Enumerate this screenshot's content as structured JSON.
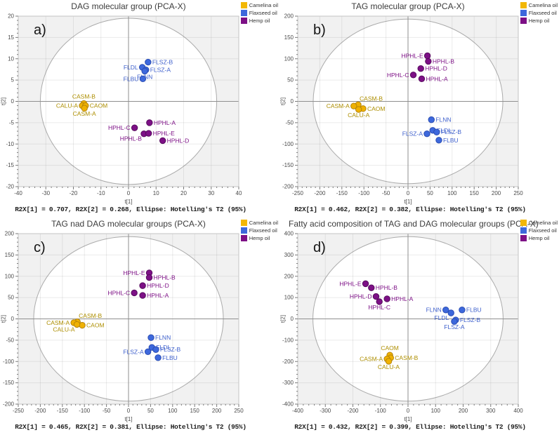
{
  "figure": {
    "background": "#ffffff"
  },
  "legend": {
    "items": [
      {
        "label": "Camelina oil",
        "color": "#F2B705"
      },
      {
        "label": "Flaxseed oil",
        "color": "#3D68DC"
      },
      {
        "label": "Hemp oil",
        "color": "#7D1086"
      }
    ]
  },
  "series_colors": {
    "Camelina oil": {
      "fill": "#EFB102",
      "stroke": "#B5850C",
      "text": "#AD8E00"
    },
    "Flaxseed oil": {
      "fill": "#3D68DC",
      "stroke": "#2B4DB3",
      "text": "#3D5FCC"
    },
    "Hemp oil": {
      "fill": "#7D1086",
      "stroke": "#570B5E",
      "text": "#7D1086"
    }
  },
  "chart_data": [
    {
      "type": "scatter",
      "panel_label": "a)",
      "title": "DAG molecular group (PCA-X)",
      "xlabel": "t[1]",
      "ylabel": "t[2]",
      "caption": "R2X[1] = 0.707, R2X[2] = 0.268, Ellipse: Hotelling's T2 (95%)",
      "xlim": [
        -40,
        40
      ],
      "ylim": [
        -20,
        20
      ],
      "xtick_step": 10,
      "ytick_step": 5,
      "ellipse": {
        "rx": 32,
        "ry": 19.5
      },
      "points": [
        {
          "label": "CASM-B",
          "series": "Camelina oil",
          "x": -16.2,
          "y": -0.5,
          "anchor": "above"
        },
        {
          "label": "CALU-A",
          "series": "Camelina oil",
          "x": -16.8,
          "y": -1.0,
          "anchor": "left"
        },
        {
          "label": "CAOM",
          "series": "Camelina oil",
          "x": -15.6,
          "y": -1.0,
          "anchor": "right"
        },
        {
          "label": "CASM-A",
          "series": "Camelina oil",
          "x": -16.0,
          "y": -1.6,
          "anchor": "below"
        },
        {
          "label": "FLSZ-B",
          "series": "Flaxseed oil",
          "x": 7.1,
          "y": 9.2,
          "anchor": "right"
        },
        {
          "label": "FLDL",
          "series": "Flaxseed oil",
          "x": 5.0,
          "y": 8.0,
          "anchor": "left"
        },
        {
          "label": "FLSZ-A",
          "series": "Flaxseed oil",
          "x": 6.3,
          "y": 7.4,
          "anchor": "right"
        },
        {
          "label": "FLNN",
          "series": "Flaxseed oil",
          "x": 5.9,
          "y": 7.1,
          "anchor": "below"
        },
        {
          "label": "FLBU",
          "series": "Flaxseed oil",
          "x": 5.2,
          "y": 5.3,
          "anchor": "left"
        },
        {
          "label": "HPHL-A",
          "series": "Hemp oil",
          "x": 7.6,
          "y": -5.0,
          "anchor": "right"
        },
        {
          "label": "HPHL-C",
          "series": "Hemp oil",
          "x": 2.2,
          "y": -6.2,
          "anchor": "left"
        },
        {
          "label": "HPHL-B",
          "series": "Hemp oil",
          "x": 5.6,
          "y": -7.6,
          "anchor": "below-left"
        },
        {
          "label": "HPHL-E",
          "series": "Hemp oil",
          "x": 7.3,
          "y": -7.5,
          "anchor": "right"
        },
        {
          "label": "HPHL-D",
          "series": "Hemp oil",
          "x": 12.4,
          "y": -9.2,
          "anchor": "right"
        }
      ]
    },
    {
      "type": "scatter",
      "panel_label": "b)",
      "title": "TAG molecular group (PCA-X)",
      "xlabel": "t[1]",
      "ylabel": "t[2]",
      "caption": "R2X[1] = 0.462, R2X[2] = 0.382, Ellipse: Hotelling's T2 (95%)",
      "xlim": [
        -250,
        250
      ],
      "ylim": [
        -200,
        200
      ],
      "xtick_step": 50,
      "ytick_step": 50,
      "ellipse": {
        "rx": 215,
        "ry": 193
      },
      "points": [
        {
          "label": "HPHL-E",
          "series": "Hemp oil",
          "x": 44,
          "y": 107,
          "anchor": "left"
        },
        {
          "label": "HPHL-B",
          "series": "Hemp oil",
          "x": 46,
          "y": 94,
          "anchor": "right"
        },
        {
          "label": "HPHL-D",
          "series": "Hemp oil",
          "x": 29,
          "y": 77,
          "anchor": "right"
        },
        {
          "label": "HPHL-C",
          "series": "Hemp oil",
          "x": 12,
          "y": 62,
          "anchor": "left"
        },
        {
          "label": "HPHL-A",
          "series": "Hemp oil",
          "x": 31,
          "y": 53,
          "anchor": "right"
        },
        {
          "label": "CASM-B",
          "series": "Camelina oil",
          "x": -113,
          "y": -8,
          "anchor": "above-right"
        },
        {
          "label": "CASM-A",
          "series": "Camelina oil",
          "x": -123,
          "y": -11,
          "anchor": "left"
        },
        {
          "label": "CAOM",
          "series": "Camelina oil",
          "x": -102,
          "y": -17,
          "anchor": "right"
        },
        {
          "label": "CALU-A",
          "series": "Camelina oil",
          "x": -112,
          "y": -19,
          "anchor": "below"
        },
        {
          "label": "FLNN",
          "series": "Flaxseed oil",
          "x": 53,
          "y": -43,
          "anchor": "right"
        },
        {
          "label": "FLDL",
          "series": "Flaxseed oil",
          "x": 56,
          "y": -68,
          "anchor": "right"
        },
        {
          "label": "FLSZ-B",
          "series": "Flaxseed oil",
          "x": 65,
          "y": -72,
          "anchor": "right"
        },
        {
          "label": "FLSZ-A",
          "series": "Flaxseed oil",
          "x": 43,
          "y": -76,
          "anchor": "left"
        },
        {
          "label": "FLBU",
          "series": "Flaxseed oil",
          "x": 70,
          "y": -91,
          "anchor": "right"
        }
      ]
    },
    {
      "type": "scatter",
      "panel_label": "c)",
      "title": "TAG nad DAG molecular groups (PCA-X)",
      "xlabel": "t[1]",
      "ylabel": "t[2]",
      "caption": "R2X[1] = 0.465, R2X[2] = 0.381, Ellipse: Hotelling's T2 (95%)",
      "xlim": [
        -250,
        250
      ],
      "ylim": [
        -200,
        200
      ],
      "xtick_step": 50,
      "ytick_step": 50,
      "ellipse": {
        "rx": 215,
        "ry": 193
      },
      "points": [
        {
          "label": "HPHL-E",
          "series": "Hemp oil",
          "x": 47,
          "y": 108,
          "anchor": "left"
        },
        {
          "label": "HPHL-B",
          "series": "Hemp oil",
          "x": 47,
          "y": 97,
          "anchor": "right"
        },
        {
          "label": "HPHL-D",
          "series": "Hemp oil",
          "x": 32,
          "y": 78,
          "anchor": "right"
        },
        {
          "label": "HPHL-C",
          "series": "Hemp oil",
          "x": 13,
          "y": 61,
          "anchor": "left"
        },
        {
          "label": "HPHL-A",
          "series": "Hemp oil",
          "x": 32,
          "y": 55,
          "anchor": "right"
        },
        {
          "label": "CASM-B",
          "series": "Camelina oil",
          "x": -116,
          "y": -7,
          "anchor": "above-right"
        },
        {
          "label": "CASM-A",
          "series": "Camelina oil",
          "x": -124,
          "y": -9,
          "anchor": "left"
        },
        {
          "label": "CAOM",
          "series": "Camelina oil",
          "x": -105,
          "y": -15,
          "anchor": "right"
        },
        {
          "label": "CALU-A",
          "series": "Camelina oil",
          "x": -117,
          "y": -13,
          "anchor": "below-left"
        },
        {
          "label": "FLNN",
          "series": "Flaxseed oil",
          "x": 51,
          "y": -44,
          "anchor": "right"
        },
        {
          "label": "FLDL",
          "series": "Flaxseed oil",
          "x": 53,
          "y": -67,
          "anchor": "right"
        },
        {
          "label": "FLSZ-B",
          "series": "Flaxseed oil",
          "x": 62,
          "y": -72,
          "anchor": "right"
        },
        {
          "label": "FLSZ-A",
          "series": "Flaxseed oil",
          "x": 44,
          "y": -77,
          "anchor": "left"
        },
        {
          "label": "FLBU",
          "series": "Flaxseed oil",
          "x": 67,
          "y": -91,
          "anchor": "right"
        }
      ]
    },
    {
      "type": "scatter",
      "panel_label": "d)",
      "title": "Fatty acid composition of TAG and DAG molecular groups (PCA-X)",
      "xlabel": "t[1]",
      "ylabel": "t[2]",
      "caption": "R2X[1] = 0.432, R2X[2] = 0.399, Ellipse: Hotelling's T2 (95%)",
      "xlim": [
        -400,
        400
      ],
      "ylim": [
        -400,
        400
      ],
      "xtick_step": 100,
      "ytick_step": 100,
      "ellipse": {
        "rx": 345,
        "ry": 386
      },
      "points": [
        {
          "label": "HPHL-E",
          "series": "Hemp oil",
          "x": -154,
          "y": 165,
          "anchor": "left"
        },
        {
          "label": "HPHL-B",
          "series": "Hemp oil",
          "x": -133,
          "y": 146,
          "anchor": "right"
        },
        {
          "label": "HPHL-D",
          "series": "Hemp oil",
          "x": -116,
          "y": 105,
          "anchor": "left"
        },
        {
          "label": "HPHL-A",
          "series": "Hemp oil",
          "x": -76,
          "y": 94,
          "anchor": "right"
        },
        {
          "label": "HPHL-C",
          "series": "Hemp oil",
          "x": -104,
          "y": 81,
          "anchor": "below"
        },
        {
          "label": "FLNN",
          "series": "Flaxseed oil",
          "x": 137,
          "y": 42,
          "anchor": "left"
        },
        {
          "label": "FLBU",
          "series": "Flaxseed oil",
          "x": 196,
          "y": 42,
          "anchor": "right"
        },
        {
          "label": "FLDL",
          "series": "Flaxseed oil",
          "x": 156,
          "y": 28,
          "anchor": "below-left"
        },
        {
          "label": "FLSZ-B",
          "series": "Flaxseed oil",
          "x": 173,
          "y": -5,
          "anchor": "right"
        },
        {
          "label": "FLSZ-A",
          "series": "Flaxseed oil",
          "x": 168,
          "y": -12,
          "anchor": "below"
        },
        {
          "label": "CAOM",
          "series": "Camelina oil",
          "x": -66,
          "y": -170,
          "anchor": "above"
        },
        {
          "label": "CASM-B",
          "series": "Camelina oil",
          "x": -63,
          "y": -183,
          "anchor": "right"
        },
        {
          "label": "CASM-A",
          "series": "Camelina oil",
          "x": -76,
          "y": -188,
          "anchor": "left"
        },
        {
          "label": "CALU-A",
          "series": "Camelina oil",
          "x": -70,
          "y": -199,
          "anchor": "below"
        }
      ]
    }
  ]
}
